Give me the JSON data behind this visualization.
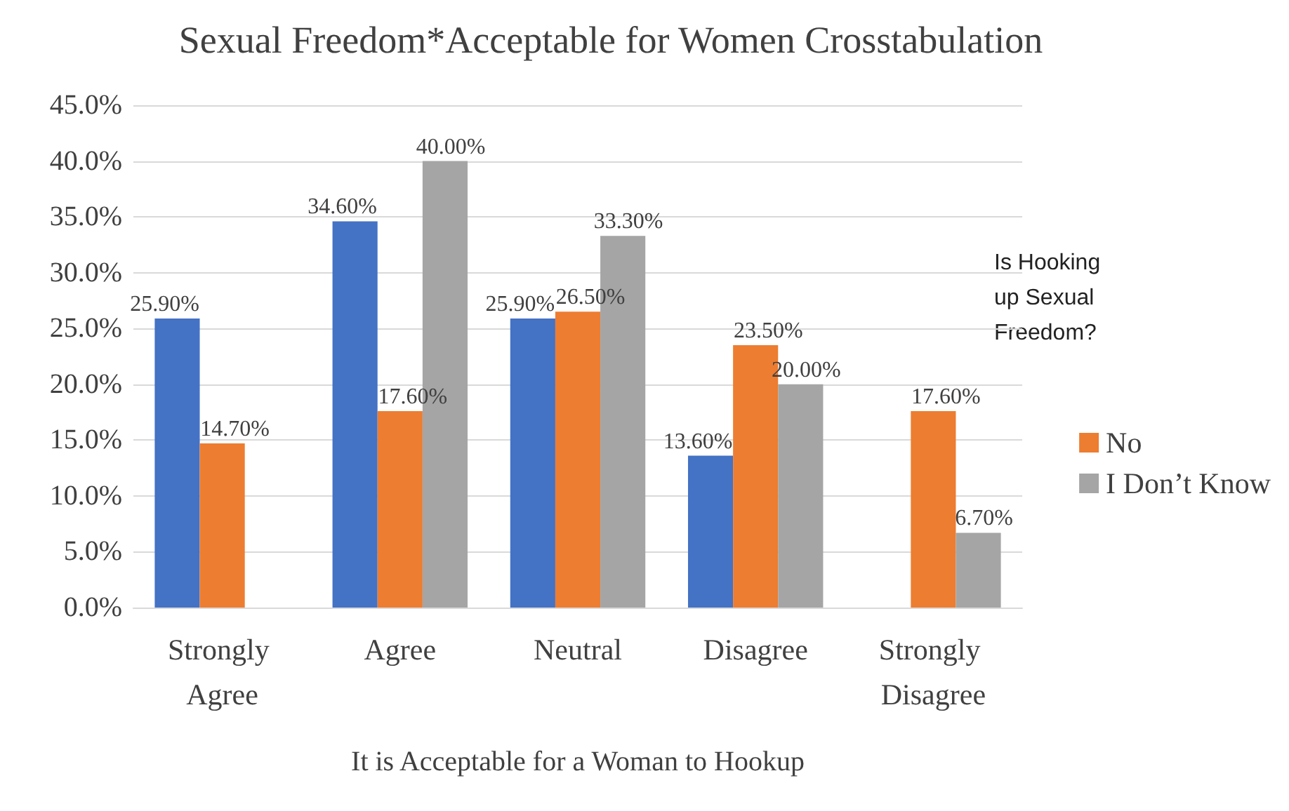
{
  "chart_data": {
    "type": "bar",
    "title": "Sexual Freedom*Acceptable for Women Crosstabulation",
    "xlabel": "It is Acceptable for a Woman to Hookup",
    "legend_title": "Is Hooking up Sexual Freedom?",
    "categories": [
      "Strongly Agree",
      "Agree",
      "Neutral",
      "Disagree",
      "Strongly Disagree"
    ],
    "series": [
      {
        "color": "#4472c4",
        "values": [
          25.9,
          34.6,
          25.9,
          13.6,
          null
        ],
        "value_labels": [
          "25.90%",
          "34.60%",
          "25.90%",
          "13.60%",
          null
        ]
      },
      {
        "name": "No",
        "color": "#ed7d31",
        "values": [
          14.7,
          17.6,
          26.5,
          23.5,
          17.6
        ],
        "value_labels": [
          "14.70%",
          "17.60%",
          "26.50%",
          "23.50%",
          "17.60%"
        ]
      },
      {
        "name": "I Don’t Know",
        "color": "#a5a5a5",
        "values": [
          null,
          40.0,
          33.3,
          20.0,
          6.7
        ],
        "value_labels": [
          null,
          "40.00%",
          "33.30%",
          "20.00%",
          "6.70%"
        ]
      }
    ],
    "ylim": [
      0,
      45
    ],
    "yticks": [
      {
        "value": 0,
        "label": "0.0%"
      },
      {
        "value": 5,
        "label": "5.0%"
      },
      {
        "value": 10,
        "label": "10.0%"
      },
      {
        "value": 15,
        "label": "15.0%"
      },
      {
        "value": 20,
        "label": "20.0%"
      },
      {
        "value": 25,
        "label": "25.0%"
      },
      {
        "value": 30,
        "label": "30.0%"
      },
      {
        "value": 35,
        "label": "35.0%"
      },
      {
        "value": 40,
        "label": "40.0%"
      },
      {
        "value": 45,
        "label": "45.0%"
      }
    ],
    "grid": "y",
    "legend": "right"
  }
}
